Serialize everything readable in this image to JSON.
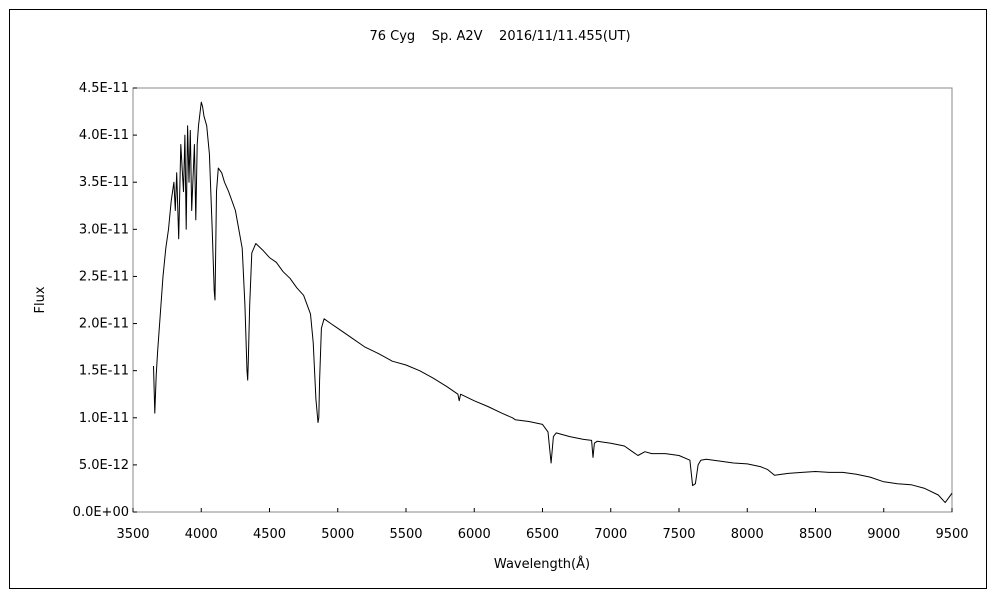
{
  "chart_data": {
    "type": "line",
    "title": "76 Cyg    Sp. A2V    2016/11/11.455(UT)",
    "xlabel": "Wavelength(Å)",
    "ylabel": "Flux",
    "xlim": [
      3500,
      9500
    ],
    "ylim": [
      0,
      4.5e-11
    ],
    "x_ticks": [
      "3500",
      "4000",
      "4500",
      "5000",
      "5500",
      "6000",
      "6500",
      "7000",
      "7500",
      "8000",
      "8500",
      "9000",
      "9500"
    ],
    "y_ticks": [
      "0.0E+00",
      "5.0E-12",
      "1.0E-11",
      "1.5E-11",
      "2.0E-11",
      "2.5E-11",
      "3.0E-11",
      "3.5E-11",
      "4.0E-11",
      "4.5E-11"
    ],
    "grid": false,
    "series": [
      {
        "color": "#000000",
        "x": [
          3650,
          3660,
          3670,
          3680,
          3700,
          3720,
          3740,
          3760,
          3780,
          3800,
          3810,
          3820,
          3835,
          3850,
          3870,
          3880,
          3890,
          3900,
          3910,
          3920,
          3930,
          3950,
          3960,
          3970,
          3980,
          4000,
          4010,
          4020,
          4040,
          4060,
          4080,
          4095,
          4101,
          4105,
          4112,
          4125,
          4150,
          4170,
          4200,
          4250,
          4300,
          4320,
          4335,
          4340,
          4345,
          4355,
          4370,
          4400,
          4450,
          4500,
          4550,
          4600,
          4650,
          4700,
          4750,
          4800,
          4820,
          4840,
          4855,
          4861,
          4867,
          4880,
          4900,
          4950,
          5000,
          5100,
          5200,
          5300,
          5400,
          5500,
          5600,
          5700,
          5800,
          5880,
          5890,
          5900,
          6000,
          6100,
          6200,
          6280,
          6300,
          6400,
          6500,
          6540,
          6563,
          6580,
          6600,
          6700,
          6800,
          6860,
          6870,
          6880,
          6900,
          7000,
          7100,
          7150,
          7200,
          7250,
          7300,
          7400,
          7500,
          7580,
          7600,
          7620,
          7640,
          7660,
          7700,
          7800,
          7900,
          8000,
          8100,
          8150,
          8200,
          8300,
          8400,
          8500,
          8600,
          8700,
          8800,
          8900,
          9000,
          9100,
          9200,
          9300,
          9400,
          9450,
          9500
        ],
        "y": [
          1.55e-11,
          1.05e-11,
          1.45e-11,
          1.7e-11,
          2.1e-11,
          2.5e-11,
          2.8e-11,
          3e-11,
          3.3e-11,
          3.5e-11,
          3.2e-11,
          3.6e-11,
          2.9e-11,
          3.9e-11,
          3.4e-11,
          4e-11,
          3e-11,
          4.1e-11,
          3.5e-11,
          4.05e-11,
          3.2e-11,
          3.9e-11,
          3.1e-11,
          3.9e-11,
          4.1e-11,
          4.35e-11,
          4.3e-11,
          4.2e-11,
          4.1e-11,
          3.8e-11,
          3e-11,
          2.35e-11,
          2.25e-11,
          2.7e-11,
          3.4e-11,
          3.65e-11,
          3.6e-11,
          3.5e-11,
          3.4e-11,
          3.2e-11,
          2.8e-11,
          2.2e-11,
          1.5e-11,
          1.4e-11,
          1.6e-11,
          2.2e-11,
          2.75e-11,
          2.85e-11,
          2.78e-11,
          2.7e-11,
          2.65e-11,
          2.55e-11,
          2.48e-11,
          2.38e-11,
          2.3e-11,
          2.1e-11,
          1.8e-11,
          1.2e-11,
          9.5e-12,
          1e-11,
          1.4e-11,
          1.95e-11,
          2.05e-11,
          2e-11,
          1.95e-11,
          1.85e-11,
          1.75e-11,
          1.68e-11,
          1.6e-11,
          1.56e-11,
          1.5e-11,
          1.42e-11,
          1.33e-11,
          1.25e-11,
          1.18e-11,
          1.25e-11,
          1.18e-11,
          1.12e-11,
          1.05e-11,
          1e-11,
          9.8e-12,
          9.6e-12,
          9.3e-12,
          8.5e-12,
          5.2e-12,
          8e-12,
          8.4e-12,
          8e-12,
          7.7e-12,
          7.6e-12,
          5.8e-12,
          7.3e-12,
          7.5e-12,
          7.3e-12,
          7e-12,
          6.5e-12,
          6e-12,
          6.4e-12,
          6.2e-12,
          6.2e-12,
          6e-12,
          5.5e-12,
          2.8e-12,
          3e-12,
          5e-12,
          5.5e-12,
          5.6e-12,
          5.4e-12,
          5.2e-12,
          5.1e-12,
          4.8e-12,
          4.5e-12,
          3.9e-12,
          4.1e-12,
          4.2e-12,
          4.3e-12,
          4.2e-12,
          4.2e-12,
          4e-12,
          3.7e-12,
          3.2e-12,
          3e-12,
          2.9e-12,
          2.5e-12,
          1.8e-12,
          1e-12,
          2e-12
        ]
      }
    ]
  }
}
